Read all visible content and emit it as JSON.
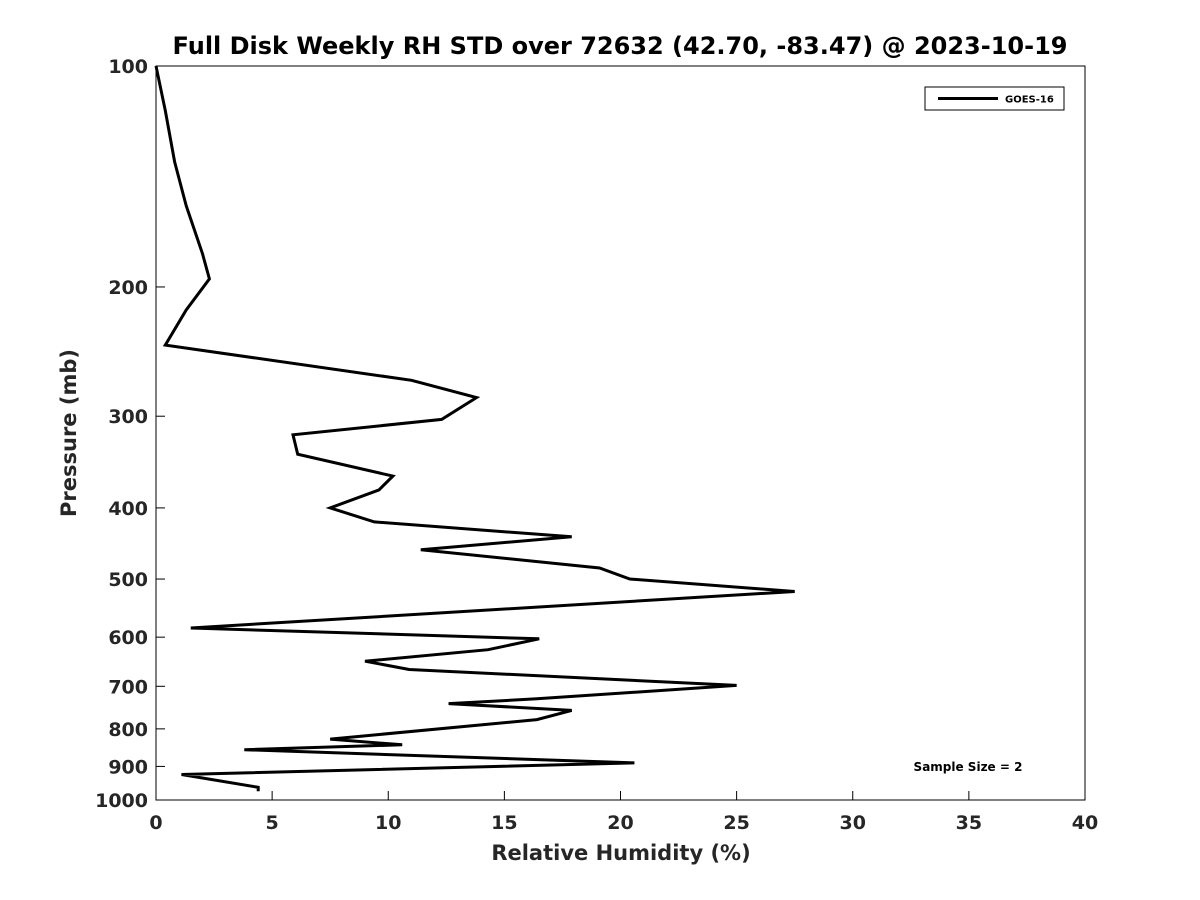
{
  "chart_data": {
    "type": "line",
    "title": "Full Disk Weekly RH STD over 72632 (42.70, -83.47) @ 2023-10-19",
    "xlabel": "Relative Humidity (%)",
    "ylabel": "Pressure (mb)",
    "xlim": [
      0,
      40
    ],
    "ylim": [
      100,
      1000
    ],
    "yscale": "log",
    "yreversed": true,
    "xticks": [
      0,
      5,
      10,
      15,
      20,
      25,
      30,
      35,
      40
    ],
    "yticks": [
      100,
      200,
      300,
      400,
      500,
      600,
      700,
      800,
      900,
      1000
    ],
    "grid": false,
    "legend_position": "top-right",
    "series": [
      {
        "name": "GOES-16",
        "color": "#000000",
        "x": [
          0.0,
          0.4,
          0.8,
          1.3,
          2.0,
          2.3,
          1.3,
          0.4,
          11.0,
          13.8,
          12.3,
          5.9,
          6.1,
          10.2,
          9.6,
          7.5,
          9.4,
          17.9,
          11.4,
          19.1,
          20.4,
          27.5,
          1.5,
          16.5,
          14.3,
          9.0,
          10.9,
          25.0,
          16.4,
          12.6,
          17.9,
          16.4,
          7.5,
          10.6,
          3.8,
          20.6,
          1.1,
          4.4,
          4.4
        ],
        "y": [
          100,
          115,
          135,
          155,
          180,
          195,
          215,
          240,
          268,
          283,
          303,
          318,
          338,
          362,
          378,
          400,
          418,
          438,
          456,
          483,
          500,
          520,
          583,
          603,
          624,
          647,
          664,
          698,
          728,
          739,
          755,
          777,
          826,
          841,
          854,
          890,
          923,
          961,
          973
        ]
      }
    ],
    "annotations": [
      "Sample Size = 2"
    ]
  }
}
